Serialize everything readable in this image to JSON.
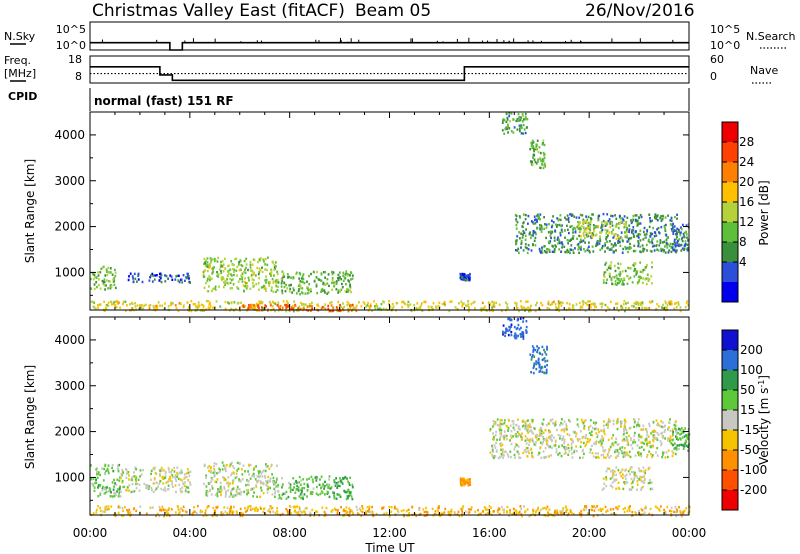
{
  "header": {
    "title": "Christmas Valley East (fitACF)",
    "beam": "Beam 05",
    "date": "26/Nov/2016"
  },
  "nsky_panel": {
    "left_label": "N.Sky",
    "left_ticks": [
      "10^5",
      "10^0"
    ],
    "right_ticks": [
      "10^5",
      "10^0"
    ],
    "right_label": "N.Search"
  },
  "freq_panel": {
    "left_label_line1": "Freq.",
    "left_label_line2": "[MHz]",
    "left_ticks": [
      "18",
      "8"
    ],
    "right_ticks": [
      "60",
      "0"
    ],
    "right_label": "Nave"
  },
  "cpid_panel": {
    "label": "CPID",
    "text": "normal (fast) 151 RF"
  },
  "x_axis": {
    "tick_labels": [
      "00:00",
      "04:00",
      "08:00",
      "12:00",
      "16:00",
      "20:00",
      "00:00"
    ],
    "title": "Time UT"
  },
  "power_panel": {
    "ylabel": "Slant Range [km]",
    "y_ticks": [
      "4000",
      "3000",
      "2000",
      "1000"
    ],
    "colorbar_title": "Power [dB]",
    "colorbar_ticks": [
      "28",
      "24",
      "20",
      "16",
      "12",
      "8",
      "4"
    ],
    "colorbar_colors": [
      "#0000ee",
      "#2b4fd9",
      "#3a8f3a",
      "#5fbf3a",
      "#b5d23a",
      "#ffc000",
      "#ff8000",
      "#ff4000",
      "#ee0000"
    ]
  },
  "velocity_panel": {
    "ylabel": "Slant Range [km]",
    "y_ticks": [
      "4000",
      "3000",
      "2000",
      "1000"
    ],
    "colorbar_title": "Velocity [m s^-1]",
    "colorbar_ticks": [
      "200",
      "100",
      "50",
      "15",
      "-15",
      "-50",
      "-100",
      "-200"
    ],
    "colorbar_colors": [
      "#1010d0",
      "#2d6fd8",
      "#2e9a4a",
      "#5cc83a",
      "#c8c8c0",
      "#f5c400",
      "#ff9000",
      "#ff5000",
      "#ee0000"
    ]
  },
  "chart_data": [
    {
      "type": "line",
      "panel": "N.Sky / N.Search",
      "x_unit": "hours UT",
      "xlim": [
        0,
        24
      ],
      "series": [
        {
          "x": [
            0,
            3.2,
            3.2,
            3.7,
            3.7,
            24
          ],
          "y": [
            1.3,
            1.3,
            0.0,
            0.0,
            1.3,
            1.3
          ]
        }
      ]
    },
    {
      "type": "line",
      "panel": "Freq / Nave",
      "x_unit": "hours UT",
      "xlim": [
        0,
        24
      ],
      "ylim": [
        8,
        18
      ],
      "series": [
        {
          "x": [
            0,
            2.8,
            2.8,
            3.3,
            3.3,
            15.0,
            15.0,
            24
          ],
          "y": [
            14.0,
            14.0,
            11.0,
            11.0,
            9.0,
            9.0,
            14.0,
            14.0
          ]
        },
        {
          "x": [
            0,
            24
          ],
          "y": [
            11.5,
            11.5
          ]
        }
      ]
    },
    {
      "type": "heatmap",
      "panel": "Power",
      "x_unit": "hours UT",
      "xlim": [
        0,
        24
      ],
      "ylim": [
        180,
        4500
      ],
      "clim": [
        0,
        32
      ],
      "regions": [
        {
          "t0": 0.0,
          "t1": 24.0,
          "r0": 180,
          "r1": 400,
          "value": 20
        },
        {
          "t0": 6.0,
          "t1": 10.5,
          "r0": 180,
          "r1": 330,
          "value": 28
        },
        {
          "t0": 0.0,
          "t1": 1.0,
          "r0": 650,
          "r1": 1150,
          "value": 14
        },
        {
          "t0": 1.5,
          "t1": 4.0,
          "r0": 800,
          "r1": 1000,
          "value": 6
        },
        {
          "t0": 4.5,
          "t1": 7.5,
          "r0": 600,
          "r1": 1350,
          "value": 16
        },
        {
          "t0": 7.5,
          "t1": 10.5,
          "r0": 550,
          "r1": 1050,
          "value": 13
        },
        {
          "t0": 14.8,
          "t1": 15.2,
          "r0": 850,
          "r1": 1000,
          "value": 6
        },
        {
          "t0": 16.5,
          "t1": 17.5,
          "r0": 4050,
          "r1": 4500,
          "value": 12
        },
        {
          "t0": 17.6,
          "t1": 18.2,
          "r0": 3300,
          "r1": 3900,
          "value": 13
        },
        {
          "t0": 17.0,
          "t1": 23.5,
          "r0": 1450,
          "r1": 2300,
          "value": 10
        },
        {
          "t0": 19.5,
          "t1": 21.5,
          "r0": 1750,
          "r1": 2150,
          "value": 18
        },
        {
          "t0": 20.5,
          "t1": 22.5,
          "r0": 750,
          "r1": 1250,
          "value": 15
        },
        {
          "t0": 23.3,
          "t1": 24.0,
          "r0": 1500,
          "r1": 2100,
          "value": 9
        }
      ]
    },
    {
      "type": "heatmap",
      "panel": "Velocity",
      "x_unit": "hours UT",
      "xlim": [
        0,
        24
      ],
      "ylim": [
        180,
        4500
      ],
      "clim": [
        -250,
        250
      ],
      "regions": [
        {
          "t0": 0.0,
          "t1": 24.0,
          "r0": 180,
          "r1": 400,
          "value": -40
        },
        {
          "t0": 0.0,
          "t1": 1.2,
          "r0": 600,
          "r1": 1300,
          "value": 30
        },
        {
          "t0": 1.2,
          "t1": 4.0,
          "r0": 700,
          "r1": 1250,
          "value": 0
        },
        {
          "t0": 4.5,
          "t1": 7.5,
          "r0": 600,
          "r1": 1350,
          "value": 5
        },
        {
          "t0": 7.5,
          "t1": 10.5,
          "r0": 550,
          "r1": 1050,
          "value": 40
        },
        {
          "t0": 16.5,
          "t1": 17.5,
          "r0": 4050,
          "r1": 4500,
          "value": 180
        },
        {
          "t0": 17.6,
          "t1": 18.3,
          "r0": 3300,
          "r1": 3900,
          "value": 120
        },
        {
          "t0": 16.0,
          "t1": 23.5,
          "r0": 1450,
          "r1": 2300,
          "value": 0
        },
        {
          "t0": 20.5,
          "t1": 22.5,
          "r0": 750,
          "r1": 1250,
          "value": 0
        },
        {
          "t0": 23.3,
          "t1": 24.0,
          "r0": 1600,
          "r1": 2100,
          "value": 40
        },
        {
          "t0": 14.8,
          "t1": 15.2,
          "r0": 850,
          "r1": 1000,
          "value": -60
        }
      ]
    }
  ]
}
